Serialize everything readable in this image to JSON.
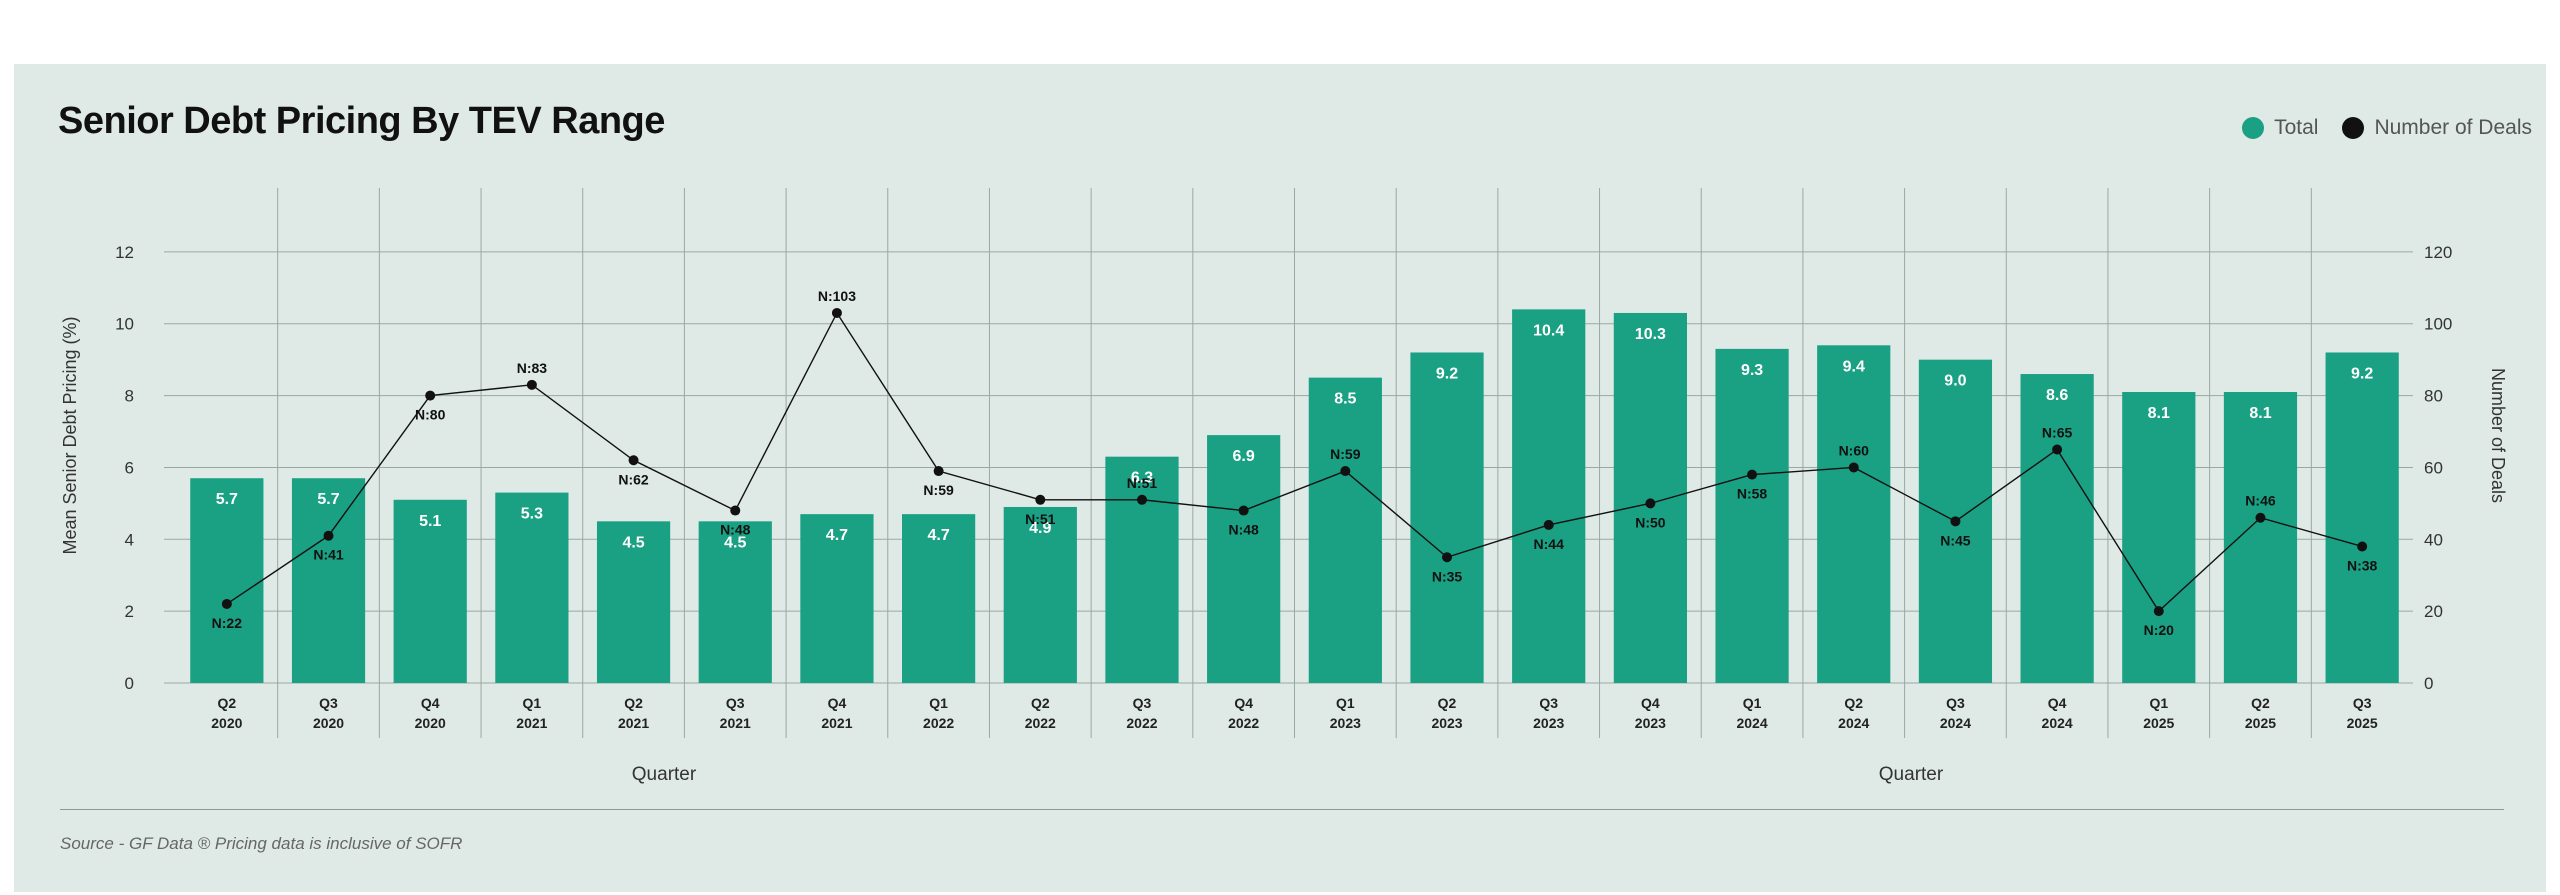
{
  "chart_data": {
    "type": "bar",
    "title": "Senior Debt Pricing By TEV Range",
    "xlabel": "Quarter",
    "ylabel": "Mean Senior Debt Pricing (%)",
    "y2label": "Number of Deals",
    "ylim": [
      0,
      13.5
    ],
    "y2lim": [
      0,
      135
    ],
    "yticks": [
      "0",
      "2",
      "4",
      "6",
      "8",
      "10",
      "12"
    ],
    "y2ticks": [
      "0",
      "20",
      "40",
      "60",
      "80",
      "100",
      "120"
    ],
    "grid": true,
    "legend_position": "top-right",
    "categories": [
      [
        "Q2",
        "2020"
      ],
      [
        "Q3",
        "2020"
      ],
      [
        "Q4",
        "2020"
      ],
      [
        "Q1",
        "2021"
      ],
      [
        "Q2",
        "2021"
      ],
      [
        "Q3",
        "2021"
      ],
      [
        "Q4",
        "2021"
      ],
      [
        "Q1",
        "2022"
      ],
      [
        "Q2",
        "2022"
      ],
      [
        "Q3",
        "2022"
      ],
      [
        "Q4",
        "2022"
      ],
      [
        "Q1",
        "2023"
      ],
      [
        "Q2",
        "2023"
      ],
      [
        "Q3",
        "2023"
      ],
      [
        "Q4",
        "2023"
      ],
      [
        "Q1",
        "2024"
      ],
      [
        "Q2",
        "2024"
      ],
      [
        "Q3",
        "2024"
      ],
      [
        "Q4",
        "2024"
      ],
      [
        "Q1",
        "2025"
      ],
      [
        "Q2",
        "2025"
      ],
      [
        "Q3",
        "2025"
      ]
    ],
    "series": [
      {
        "name": "Total",
        "type": "bar",
        "axis": "left",
        "color": "#1aa083",
        "values": [
          5.7,
          5.7,
          5.1,
          5.3,
          4.5,
          4.5,
          4.7,
          4.7,
          4.9,
          6.3,
          6.9,
          8.5,
          9.2,
          10.4,
          10.3,
          9.3,
          9.4,
          9.0,
          8.6,
          8.1,
          8.1,
          9.2
        ],
        "labels": [
          "5.7",
          "5.7",
          "5.1",
          "5.3",
          "4.5",
          "4.5",
          "4.7",
          "4.7",
          "4.9",
          "6.3",
          "6.9",
          "8.5",
          "9.2",
          "10.4",
          "10.3",
          "9.3",
          "9.4",
          "9.0",
          "8.6",
          "8.1",
          "8.1",
          "9.2"
        ]
      },
      {
        "name": "Number of Deals",
        "type": "line",
        "axis": "right",
        "color": "#111111",
        "values": [
          22,
          41,
          80,
          83,
          62,
          48,
          103,
          59,
          51,
          51,
          48,
          59,
          35,
          44,
          50,
          58,
          60,
          45,
          65,
          20,
          46,
          38
        ],
        "labels": [
          "N:22",
          "N:41",
          "N:80",
          "N:83",
          "N:62",
          "N:48",
          "N:103",
          "N:59",
          "N:51",
          "N:51",
          "N:48",
          "N:59",
          "N:35",
          "N:44",
          "N:50",
          "N:58",
          "N:60",
          "N:45",
          "N:65",
          "N:20",
          "N:46",
          "N:38"
        ]
      }
    ]
  },
  "legend": {
    "total_label": "Total",
    "deals_label": "Number of Deals"
  },
  "footer": {
    "source": "Source - GF Data ® Pricing data is inclusive of SOFR"
  },
  "colors": {
    "background": "#dfeae6",
    "bar": "#1aa083",
    "line": "#111111"
  }
}
